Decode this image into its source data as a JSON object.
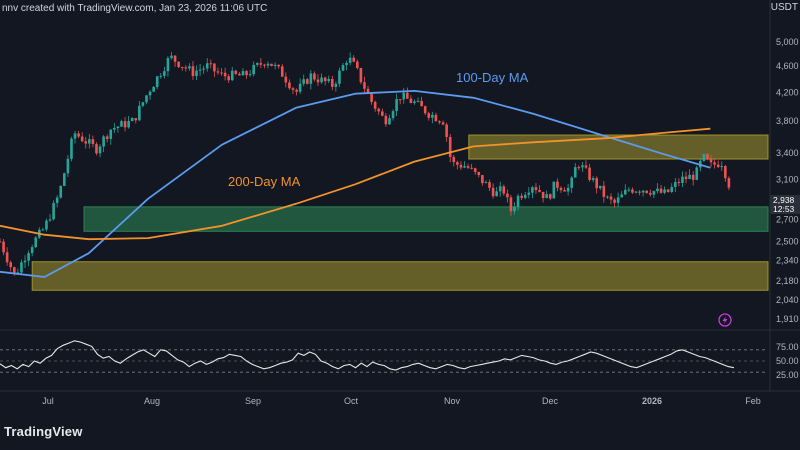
{
  "header": {
    "credit": "nnv created with TradingView.com, Jan 23, 2026 11:06 UTC",
    "symbol_currency": "USDT"
  },
  "footer": {
    "logo_text": "TradingView"
  },
  "price_tags": {
    "current": "2,938",
    "countdown": "12:53"
  },
  "chart_data": [
    {
      "type": "candlestick",
      "title": "",
      "y_ticks": [
        "5,000",
        "4,600",
        "4,200",
        "3,800",
        "3,400",
        "3,100",
        "2,700",
        "2,500",
        "2,340",
        "2,180",
        "2,040",
        "1,910"
      ],
      "x_ticks": [
        "Jul",
        "Aug",
        "Sep",
        "Oct",
        "Nov",
        "Dec",
        "2026",
        "Feb"
      ],
      "y_scale": "log",
      "series": [
        {
          "name": "100-Day MA",
          "color": "#5b9cf0",
          "values": [
            [
              0,
              2250
            ],
            [
              0.06,
              2210
            ],
            [
              0.12,
              2400
            ],
            [
              0.2,
              2900
            ],
            [
              0.3,
              3500
            ],
            [
              0.4,
              3980
            ],
            [
              0.48,
              4180
            ],
            [
              0.56,
              4220
            ],
            [
              0.64,
              4120
            ],
            [
              0.72,
              3900
            ],
            [
              0.82,
              3600
            ],
            [
              0.9,
              3380
            ],
            [
              0.96,
              3230
            ]
          ]
        },
        {
          "name": "200-Day MA",
          "color": "#f0932b",
          "values": [
            [
              0,
              2640
            ],
            [
              0.06,
              2560
            ],
            [
              0.12,
              2520
            ],
            [
              0.2,
              2530
            ],
            [
              0.3,
              2640
            ],
            [
              0.4,
              2850
            ],
            [
              0.48,
              3050
            ],
            [
              0.56,
              3300
            ],
            [
              0.64,
              3480
            ],
            [
              0.72,
              3530
            ],
            [
              0.82,
              3580
            ],
            [
              0.9,
              3650
            ],
            [
              0.96,
              3700
            ]
          ]
        }
      ],
      "zones": [
        {
          "color": "#a89b2e",
          "y_range": [
            3330,
            3620
          ],
          "x_range": [
            0.62,
            1.0
          ]
        },
        {
          "color": "#2e8b57",
          "y_range": [
            2590,
            2820
          ],
          "x_range": [
            0.1,
            1.0
          ]
        },
        {
          "color": "#a89b2e",
          "y_range": [
            2110,
            2330
          ],
          "x_range": [
            0.03,
            1.0
          ]
        }
      ],
      "price_path": [
        [
          0,
          2500
        ],
        [
          0.02,
          2220
        ],
        [
          0.04,
          2450
        ],
        [
          0.06,
          2620
        ],
        [
          0.08,
          2950
        ],
        [
          0.1,
          3650
        ],
        [
          0.13,
          3450
        ],
        [
          0.15,
          3700
        ],
        [
          0.18,
          3800
        ],
        [
          0.2,
          4200
        ],
        [
          0.23,
          4750
        ],
        [
          0.26,
          4500
        ],
        [
          0.28,
          4600
        ],
        [
          0.3,
          4450
        ],
        [
          0.33,
          4450
        ],
        [
          0.36,
          4700
        ],
        [
          0.38,
          4500
        ],
        [
          0.4,
          4200
        ],
        [
          0.42,
          4450
        ],
        [
          0.45,
          4300
        ],
        [
          0.47,
          4750
        ],
        [
          0.48,
          4580
        ],
        [
          0.5,
          4100
        ],
        [
          0.52,
          3800
        ],
        [
          0.54,
          4150
        ],
        [
          0.56,
          4050
        ],
        [
          0.58,
          3900
        ],
        [
          0.6,
          3800
        ],
        [
          0.61,
          3280
        ],
        [
          0.63,
          3250
        ],
        [
          0.65,
          3100
        ],
        [
          0.67,
          2950
        ],
        [
          0.68,
          3000
        ],
        [
          0.69,
          2780
        ],
        [
          0.7,
          2920
        ],
        [
          0.72,
          3050
        ],
        [
          0.74,
          2900
        ],
        [
          0.75,
          3050
        ],
        [
          0.77,
          3000
        ],
        [
          0.78,
          3300
        ],
        [
          0.8,
          3100
        ],
        [
          0.82,
          2900
        ],
        [
          0.83,
          2850
        ],
        [
          0.85,
          3000
        ],
        [
          0.87,
          3000
        ],
        [
          0.9,
          2950
        ],
        [
          0.92,
          3100
        ],
        [
          0.94,
          3150
        ],
        [
          0.95,
          3350
        ],
        [
          0.96,
          3250
        ],
        [
          0.975,
          3300
        ],
        [
          0.99,
          2940
        ],
        [
          1.0,
          2938
        ]
      ],
      "annotations": [
        "100-Day MA",
        "200-Day MA"
      ]
    },
    {
      "type": "line",
      "title": "",
      "y_ticks": [
        "75.00",
        "50.00",
        "25.00"
      ],
      "levels": [
        70,
        50,
        30
      ],
      "values": [
        45,
        38,
        42,
        36,
        44,
        40,
        50,
        46,
        55,
        60,
        72,
        78,
        82,
        86,
        84,
        80,
        76,
        62,
        55,
        58,
        50,
        46,
        54,
        60,
        66,
        70,
        64,
        58,
        70,
        68,
        60,
        52,
        48,
        40,
        46,
        50,
        44,
        48,
        54,
        56,
        62,
        60,
        58,
        50,
        44,
        40,
        36,
        38,
        42,
        46,
        48,
        52,
        64,
        60,
        66,
        62,
        50,
        46,
        40,
        36,
        42,
        44,
        38,
        46,
        40,
        48,
        44,
        42,
        36,
        34,
        38,
        40,
        44,
        46,
        42,
        38,
        36,
        40,
        44,
        42,
        38,
        36,
        40,
        42,
        44,
        46,
        48,
        50,
        54,
        52,
        56,
        60,
        58,
        56,
        52,
        50,
        46,
        44,
        48,
        50,
        54,
        58,
        62,
        66,
        64,
        60,
        56,
        52,
        48,
        44,
        40,
        38,
        42,
        46,
        50,
        54,
        58,
        62,
        68,
        70,
        66,
        62,
        58,
        56,
        52,
        48,
        44,
        40,
        38
      ]
    }
  ]
}
